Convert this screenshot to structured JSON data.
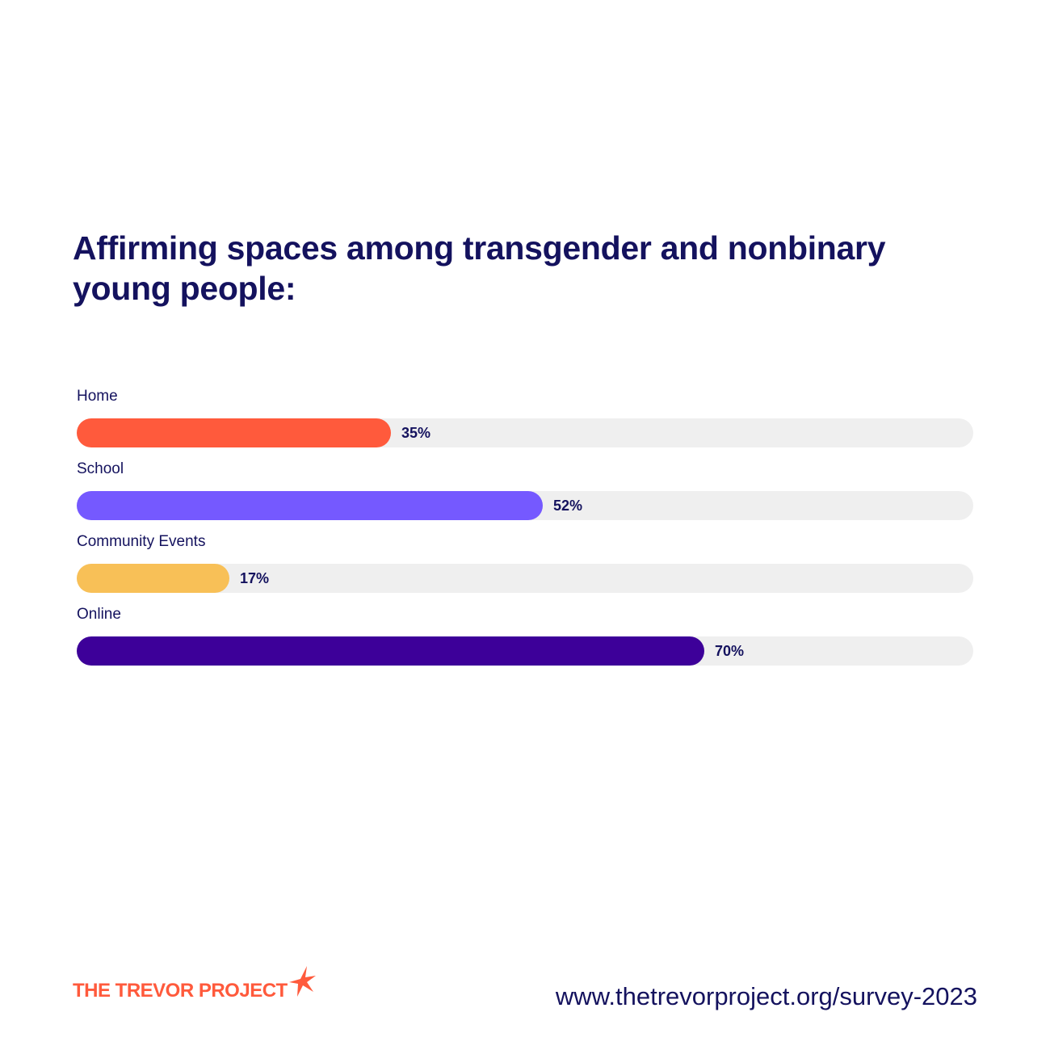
{
  "title": "Affirming spaces among transgender and nonbinary young people:",
  "chart_data": {
    "type": "bar",
    "orientation": "horizontal",
    "title": "Affirming spaces among transgender and nonbinary young people:",
    "categories": [
      "Home",
      "School",
      "Community Events",
      "Online"
    ],
    "values": [
      35,
      52,
      17,
      70
    ],
    "value_labels": [
      "35%",
      "52%",
      "17%",
      "70%"
    ],
    "unit": "%",
    "xlim": [
      0,
      100
    ],
    "colors": [
      "#ff5a3c",
      "#7559ff",
      "#f8c057",
      "#3d0099"
    ],
    "track_color": "#efefef",
    "grid": false,
    "legend": "none"
  },
  "footer": {
    "logo_text": "THE TREVOR PROJECT",
    "logo_icon": "star-icon",
    "url": "www.thetrevorproject.org/survey-2023"
  },
  "colors": {
    "text": "#14125e",
    "brand": "#ff5a3c"
  }
}
